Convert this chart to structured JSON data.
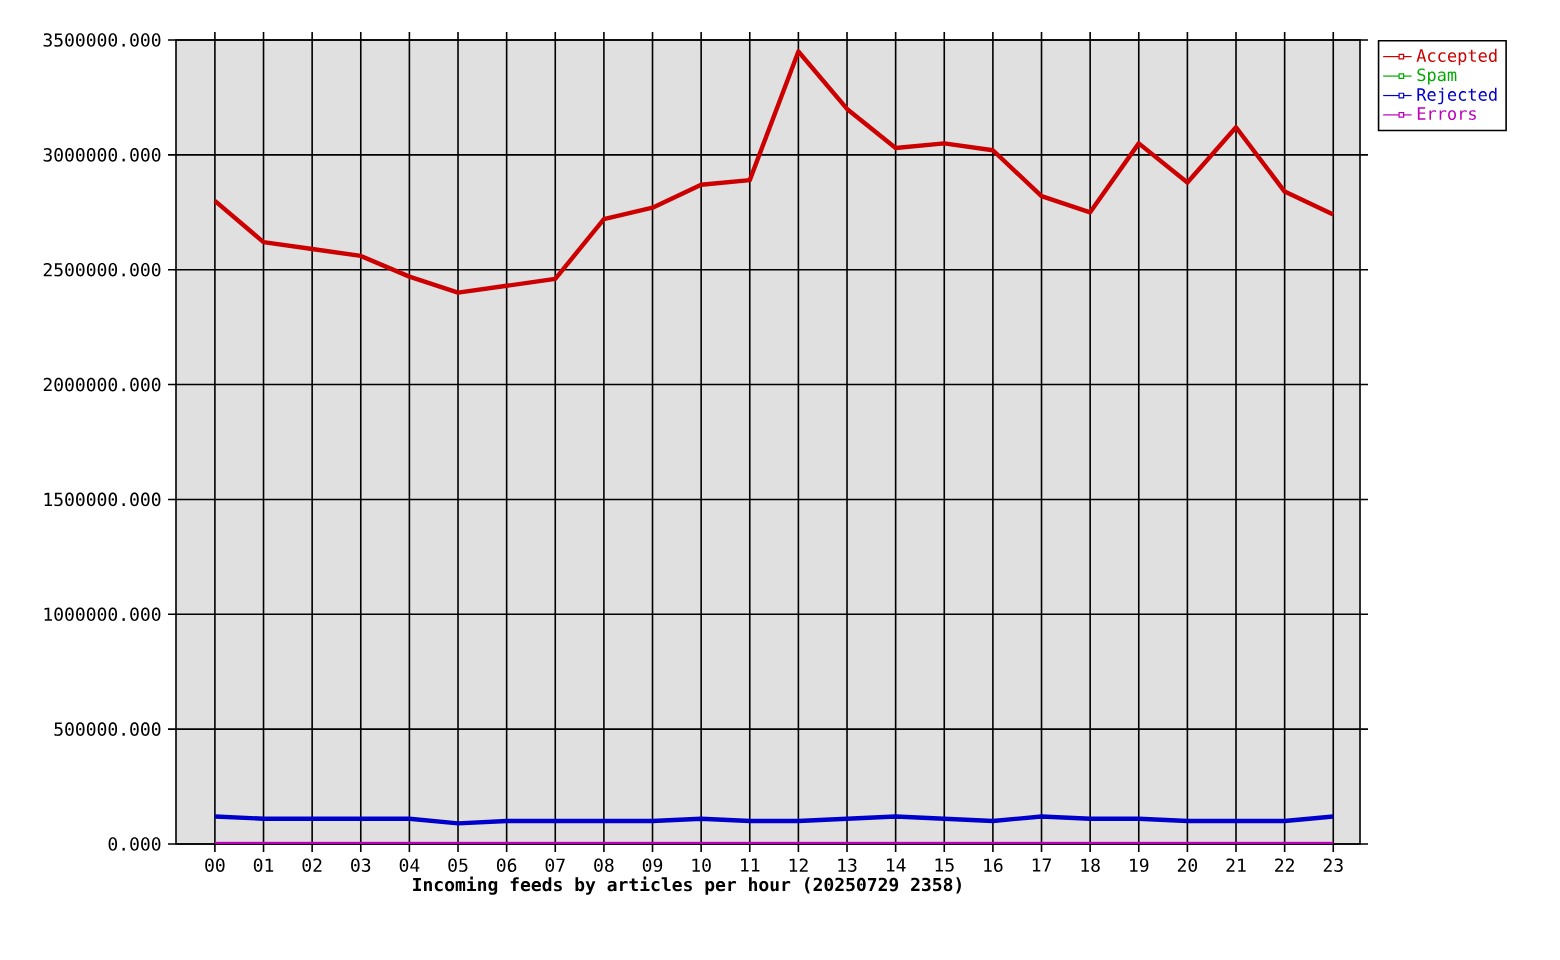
{
  "chart_data": {
    "type": "line",
    "xlabel": "Incoming feeds by articles per hour (20250729 2358)",
    "categories": [
      "00",
      "01",
      "02",
      "03",
      "04",
      "05",
      "06",
      "07",
      "08",
      "09",
      "10",
      "11",
      "12",
      "13",
      "14",
      "15",
      "16",
      "17",
      "18",
      "19",
      "20",
      "21",
      "22",
      "23"
    ],
    "series": [
      {
        "name": "Accepted",
        "color": "#cc0000",
        "values": [
          2800000,
          2620000,
          2590000,
          2560000,
          2470000,
          2400000,
          2430000,
          2460000,
          2720000,
          2770000,
          2870000,
          2890000,
          3450000,
          3200000,
          3030000,
          3050000,
          3020000,
          2820000,
          2750000,
          3050000,
          2880000,
          3120000,
          2840000,
          2740000
        ]
      },
      {
        "name": "Spam",
        "color": "#00aa00",
        "values": [
          null,
          null,
          null,
          null,
          null,
          null,
          null,
          null,
          null,
          null,
          null,
          null,
          null,
          null,
          null,
          null,
          null,
          null,
          null,
          null,
          null,
          null,
          null,
          null
        ]
      },
      {
        "name": "Rejected",
        "color": "#0000cc",
        "values": [
          120000,
          110000,
          110000,
          110000,
          110000,
          90000,
          100000,
          100000,
          100000,
          100000,
          110000,
          100000,
          100000,
          110000,
          120000,
          110000,
          100000,
          120000,
          110000,
          110000,
          100000,
          100000,
          100000,
          120000
        ]
      },
      {
        "name": "Errors",
        "color": "#bb00bb",
        "values": [
          0,
          0,
          0,
          0,
          0,
          0,
          0,
          0,
          0,
          0,
          0,
          0,
          0,
          0,
          0,
          0,
          0,
          0,
          0,
          0,
          0,
          0,
          0,
          0
        ]
      }
    ],
    "ylim": [
      0,
      3500000
    ],
    "yticks": [
      {
        "value": 0,
        "label": "0.000"
      },
      {
        "value": 500000,
        "label": "500000.000"
      },
      {
        "value": 1000000,
        "label": "1000000.000"
      },
      {
        "value": 1500000,
        "label": "1500000.000"
      },
      {
        "value": 2000000,
        "label": "2000000.000"
      },
      {
        "value": 2500000,
        "label": "2500000.000"
      },
      {
        "value": 3000000,
        "label": "3000000.000"
      },
      {
        "value": 3500000,
        "label": "3500000.000"
      }
    ],
    "grid": true,
    "legend": "top right",
    "marker": "none",
    "line_style": "solid"
  }
}
